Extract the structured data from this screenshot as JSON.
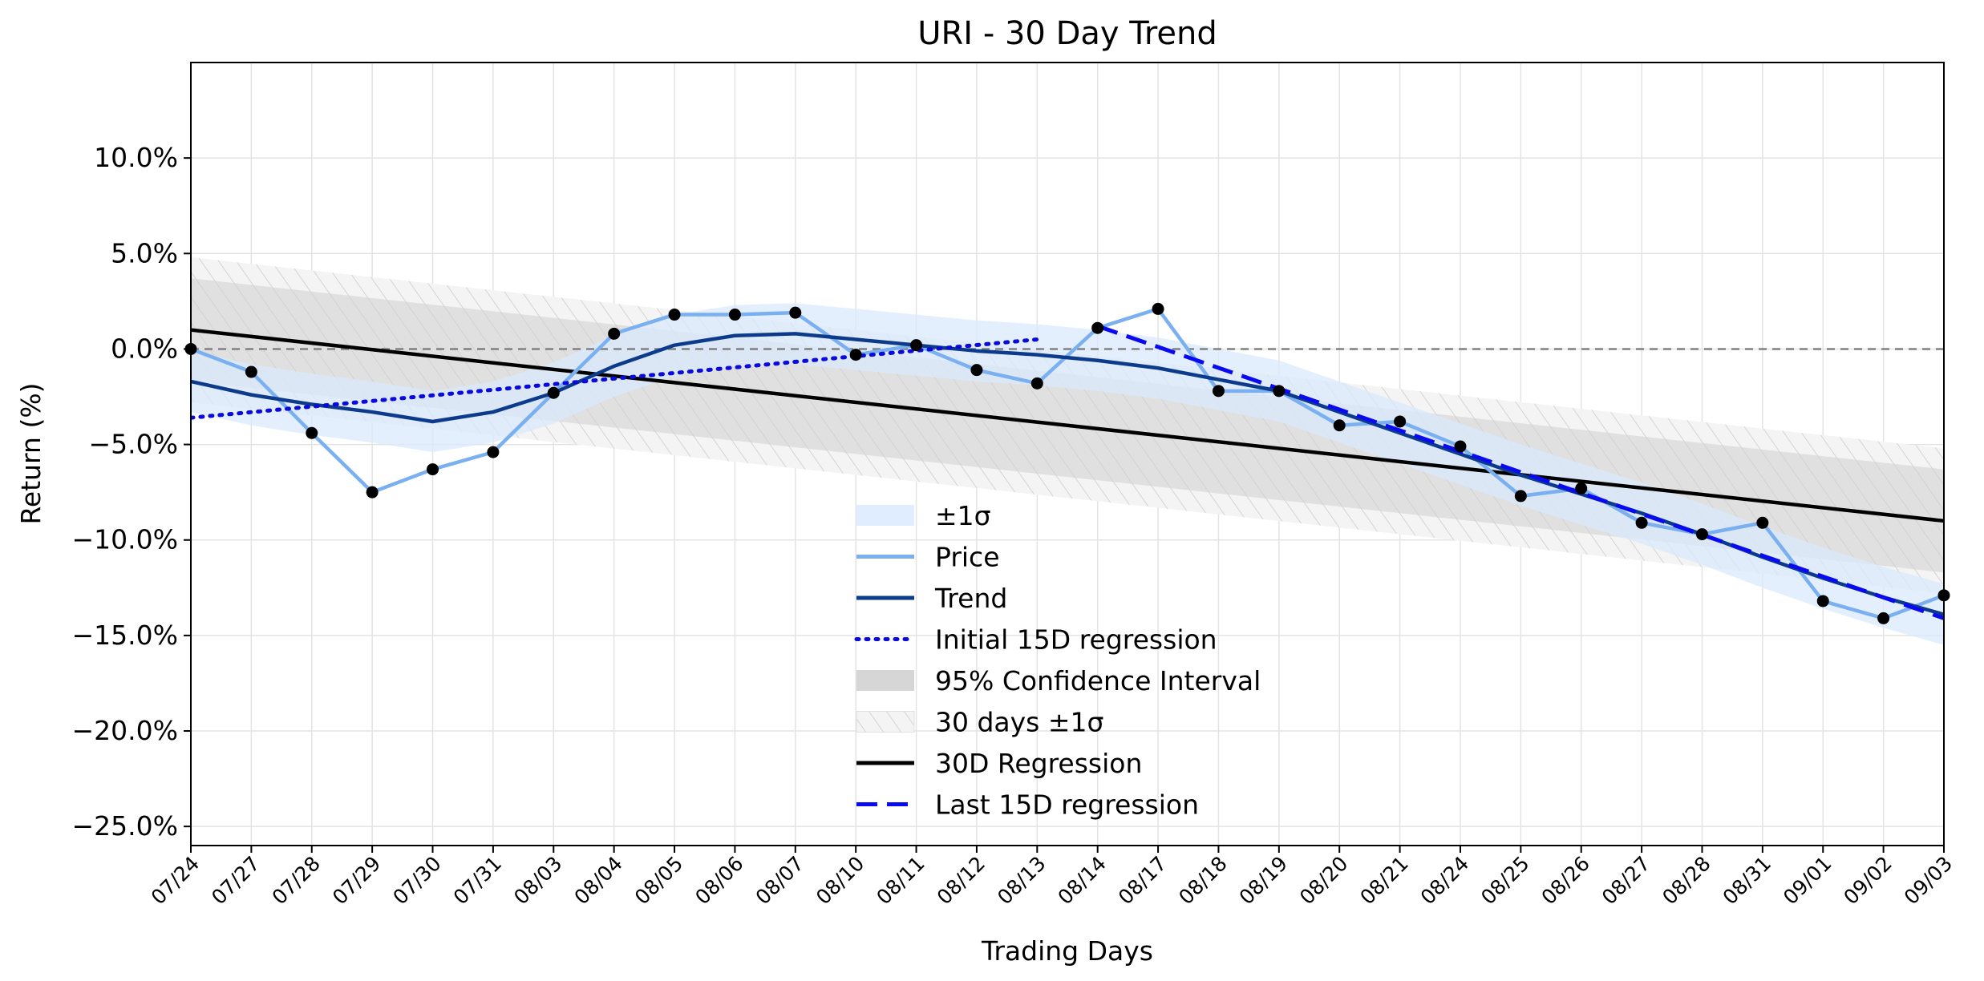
{
  "chart_data": {
    "type": "line",
    "title": "URI - 30 Day Trend",
    "xlabel": "Trading Days",
    "ylabel": "Return (%)",
    "ylim": [
      -26,
      15
    ],
    "yticks": [
      10,
      5,
      0,
      -5,
      -10,
      -15,
      -20,
      -25
    ],
    "ytick_labels": [
      "10.0%",
      "5.0%",
      "0.0%",
      "−5.0%",
      "−10.0%",
      "−15.0%",
      "−20.0%",
      "−25.0%"
    ],
    "grid": true,
    "legend_position": "lower-center",
    "categories": [
      "07/24",
      "07/27",
      "07/28",
      "07/29",
      "07/30",
      "07/31",
      "08/03",
      "08/04",
      "08/05",
      "08/06",
      "08/07",
      "08/10",
      "08/11",
      "08/12",
      "08/13",
      "08/14",
      "08/17",
      "08/18",
      "08/19",
      "08/20",
      "08/21",
      "08/24",
      "08/25",
      "08/26",
      "08/27",
      "08/28",
      "08/31",
      "09/01",
      "09/02",
      "09/03"
    ],
    "series": [
      {
        "name": "Price",
        "color": "#7ab0f0",
        "style": "solid",
        "markers": true,
        "values": [
          0.0,
          -1.2,
          -4.4,
          -7.5,
          -6.3,
          -5.4,
          -2.3,
          0.8,
          1.8,
          1.8,
          1.9,
          -0.3,
          0.2,
          -1.1,
          -1.8,
          1.1,
          2.1,
          -2.2,
          -2.2,
          -4.0,
          -3.8,
          -5.1,
          -7.7,
          -7.3,
          -9.1,
          -9.7,
          -9.1,
          -13.2,
          -14.1,
          -12.9
        ]
      },
      {
        "name": "Trend",
        "color": "#0b3b8a",
        "style": "solid",
        "values": [
          -1.7,
          -2.4,
          -2.9,
          -3.3,
          -3.8,
          -3.3,
          -2.3,
          -0.9,
          0.2,
          0.7,
          0.8,
          0.5,
          0.2,
          -0.1,
          -0.3,
          -0.6,
          -1.0,
          -1.6,
          -2.2,
          -3.3,
          -4.4,
          -5.5,
          -6.6,
          -7.6,
          -8.6,
          -9.7,
          -10.9,
          -12.0,
          -13.0,
          -13.9
        ]
      },
      {
        "name": "Initial 15D regression",
        "color": "#0a0adc",
        "style": "dotted",
        "x_range": [
          0,
          14
        ],
        "values_at_ends": [
          -3.6,
          0.5
        ]
      },
      {
        "name": "Last 15D regression",
        "color": "#0a0af0",
        "style": "dashed",
        "x_range": [
          15,
          29
        ],
        "values_at_ends": [
          1.2,
          -14.1
        ]
      },
      {
        "name": "30D Regression",
        "color": "#000000",
        "style": "solid",
        "x_range": [
          0,
          29
        ],
        "values_at_ends": [
          1.0,
          -9.0
        ]
      }
    ],
    "bands": [
      {
        "name": "±1σ",
        "color": "#dbeafe",
        "around": "Trend",
        "width": 1.6
      },
      {
        "name": "95% Confidence Interval",
        "color": "#cfcfcf",
        "around": "30D Regression",
        "width": 2.7
      },
      {
        "name": "30 days ±1σ",
        "color": "#e6e6e6",
        "hatch": true,
        "around": "30D Regression",
        "width": 3.8
      }
    ],
    "reference_line": {
      "y": 0,
      "color": "#808080",
      "style": "dashed"
    },
    "legend_order": [
      "±1σ",
      "Price",
      "Trend",
      "Initial 15D regression",
      "95% Confidence Interval",
      "30 days ±1σ",
      "30D Regression",
      "Last 15D regression"
    ]
  }
}
